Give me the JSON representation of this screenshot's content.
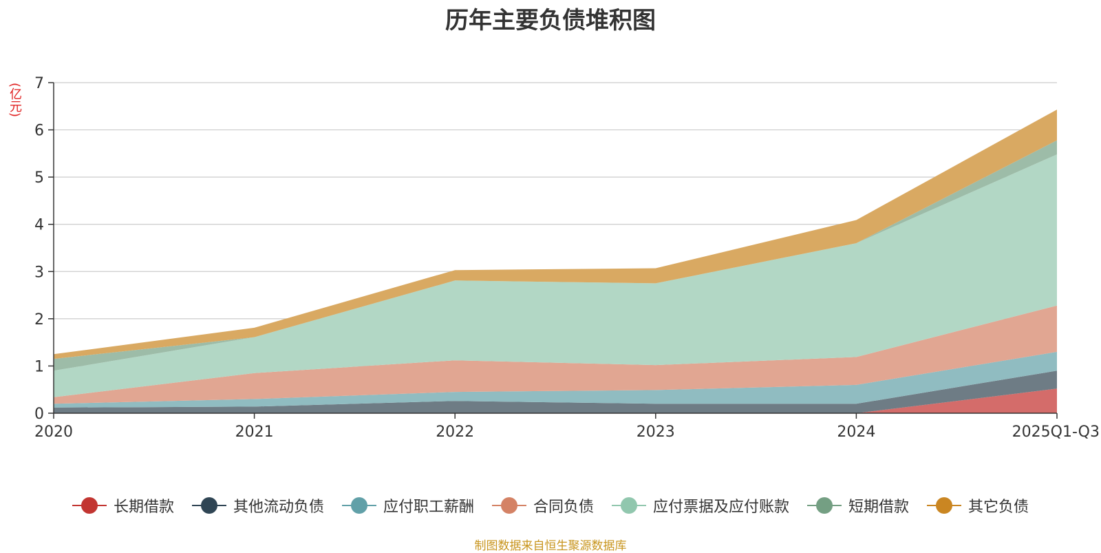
{
  "chart_data": {
    "type": "area",
    "stacked": true,
    "title": "历年主要负债堆积图",
    "ylabel": "(亿元)",
    "xlabel": "",
    "ylim": [
      0,
      7
    ],
    "yticks": [
      "0",
      "1",
      "2",
      "3",
      "4",
      "5",
      "6",
      "7"
    ],
    "categories": [
      "2020",
      "2021",
      "2022",
      "2023",
      "2024",
      "2025Q1-Q3"
    ],
    "grid": true,
    "legend_position": "bottom",
    "series": [
      {
        "name": "长期借款",
        "color": "#c23531",
        "area_color": "#d46c6a",
        "values": [
          0,
          0,
          0,
          0,
          0,
          0.52
        ]
      },
      {
        "name": "其他流动负债",
        "color": "#2f4554",
        "area_color": "#6e7c85",
        "values": [
          0.12,
          0.14,
          0.26,
          0.2,
          0.2,
          0.38
        ]
      },
      {
        "name": "应付职工薪酬",
        "color": "#61a0a8",
        "area_color": "#90bcc1",
        "values": [
          0.08,
          0.16,
          0.19,
          0.29,
          0.4,
          0.4
        ]
      },
      {
        "name": "合同负债",
        "color": "#d48265",
        "area_color": "#e1a692",
        "values": [
          0.14,
          0.55,
          0.67,
          0.53,
          0.59,
          0.98
        ]
      },
      {
        "name": "应付票据及应付账款",
        "color": "#91c7ae",
        "area_color": "#b2d7c5",
        "values": [
          0.56,
          0.76,
          1.69,
          1.73,
          2.41,
          3.2
        ]
      },
      {
        "name": "短期借款",
        "color": "#749f83",
        "area_color": "#9dbca8",
        "values": [
          0.25,
          0,
          0,
          0,
          0,
          0.3
        ]
      },
      {
        "name": "其它负债",
        "color": "#ca8622",
        "area_color": "#d9a962",
        "values": [
          0.1,
          0.2,
          0.22,
          0.32,
          0.49,
          0.65
        ]
      }
    ]
  },
  "source_note": "制图数据来自恒生聚源数据库"
}
